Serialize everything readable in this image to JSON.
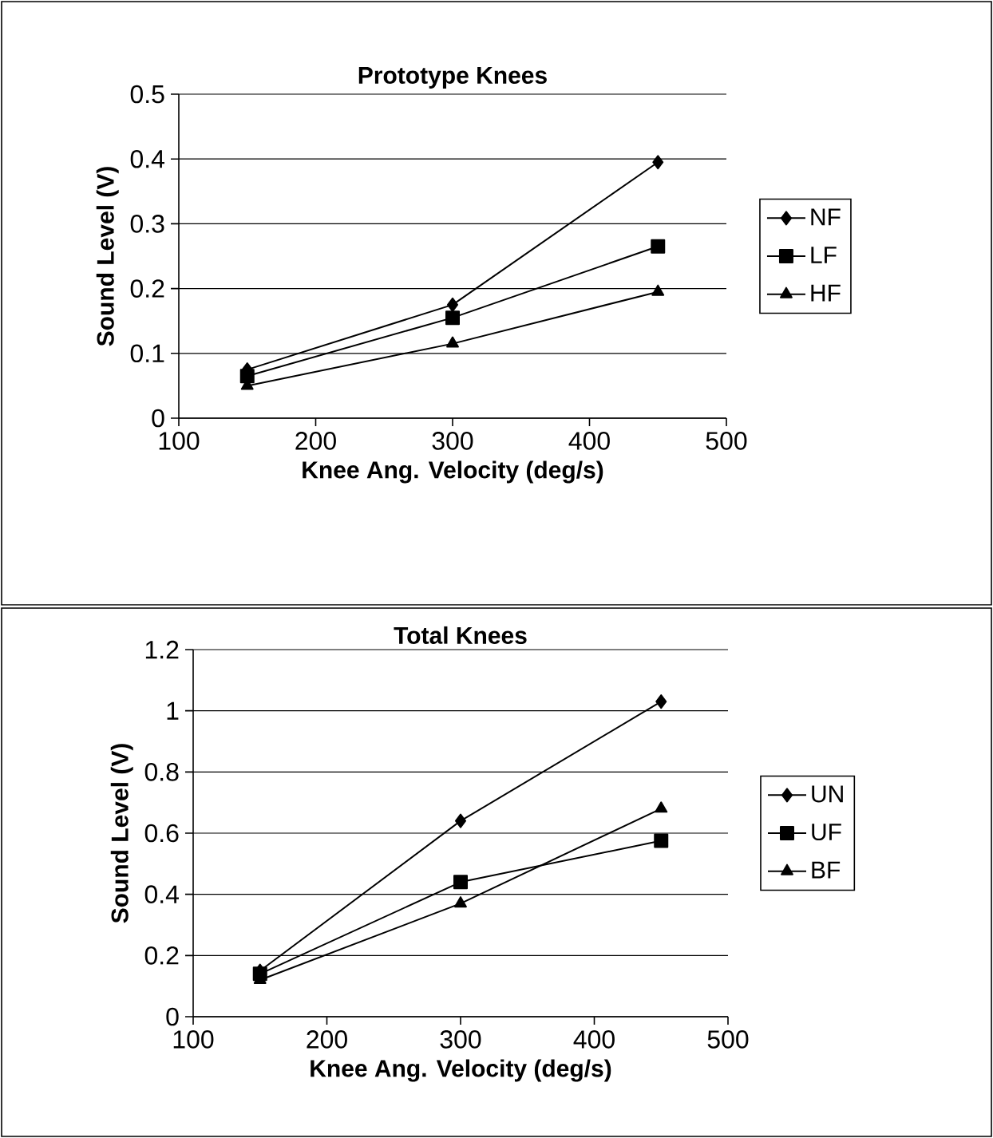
{
  "chart_data": [
    {
      "type": "line",
      "title": "Prototype Knees",
      "xlabel": "Knee Ang. Velocity (deg/s)",
      "ylabel": "Sound Level (V)",
      "x": [
        150,
        300,
        450
      ],
      "xlim": [
        100,
        500
      ],
      "xticks": [
        100,
        200,
        300,
        400,
        500
      ],
      "ylim": [
        0,
        0.5
      ],
      "yticks": [
        0,
        0.1,
        0.2,
        0.3,
        0.4,
        0.5
      ],
      "grid": "y",
      "legend": "right",
      "series": [
        {
          "name": "NF",
          "color": "#000000",
          "marker": "diamond",
          "values": [
            0.075,
            0.175,
            0.395
          ]
        },
        {
          "name": "LF",
          "color": "#000000",
          "marker": "square",
          "values": [
            0.065,
            0.155,
            0.265
          ]
        },
        {
          "name": "HF",
          "color": "#000000",
          "marker": "triangle",
          "values": [
            0.05,
            0.115,
            0.195
          ]
        }
      ]
    },
    {
      "type": "line",
      "title": "Total Knees",
      "xlabel": "Knee Ang. Velocity (deg/s)",
      "ylabel": "Sound Level (V)",
      "x": [
        150,
        300,
        450
      ],
      "xlim": [
        100,
        500
      ],
      "xticks": [
        100,
        200,
        300,
        400,
        500
      ],
      "ylim": [
        0,
        1.2
      ],
      "yticks": [
        0,
        0.2,
        0.4,
        0.6,
        0.8,
        1,
        1.2
      ],
      "grid": "y",
      "legend": "right",
      "series": [
        {
          "name": "UN",
          "color": "#000000",
          "marker": "diamond",
          "values": [
            0.15,
            0.64,
            1.03
          ]
        },
        {
          "name": "UF",
          "color": "#000000",
          "marker": "square",
          "values": [
            0.14,
            0.44,
            0.575
          ]
        },
        {
          "name": "BF",
          "color": "#000000",
          "marker": "triangle",
          "values": [
            0.12,
            0.37,
            0.68
          ]
        }
      ]
    }
  ]
}
